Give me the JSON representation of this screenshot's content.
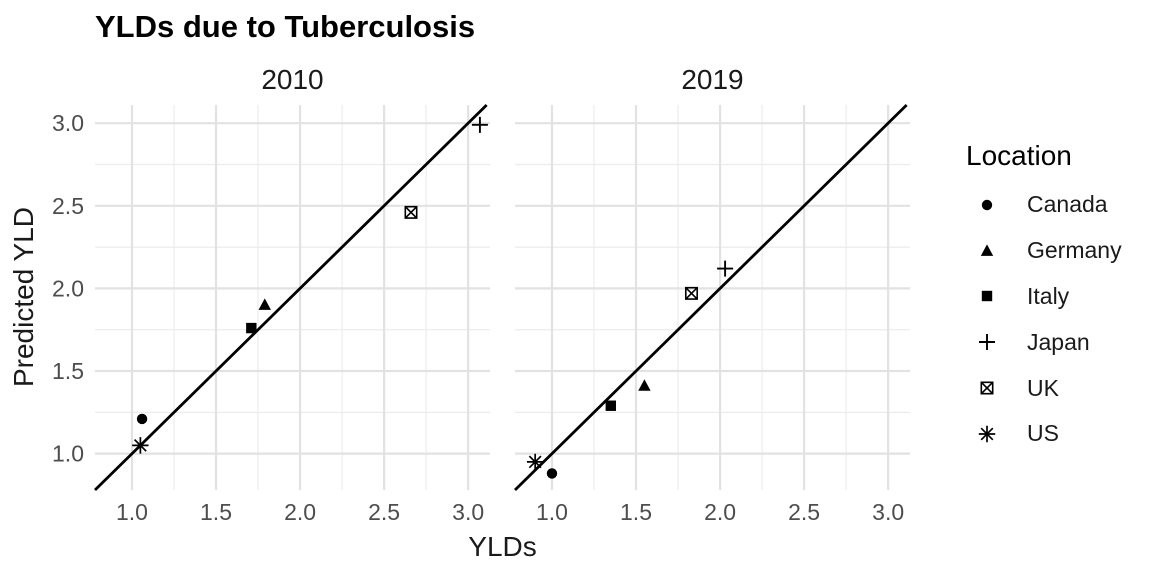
{
  "chart_data": {
    "type": "scatter",
    "title": "YLDs due to Tuberculosis",
    "xlabel": "YLDs",
    "ylabel": "Predicted YLD",
    "xlim": [
      0.78,
      3.13
    ],
    "ylim": [
      0.78,
      3.11
    ],
    "xticks": [
      1.0,
      1.5,
      2.0,
      2.5,
      3.0
    ],
    "yticks": [
      1.0,
      1.5,
      2.0,
      2.5,
      3.0
    ],
    "x_tick_labels": [
      "1.0",
      "1.5",
      "2.0",
      "2.5",
      "3.0"
    ],
    "y_tick_labels": [
      "1.0",
      "1.5",
      "2.0",
      "2.5",
      "3.0"
    ],
    "x_minor_ticks": [
      1.25,
      1.75,
      2.25,
      2.75
    ],
    "y_minor_ticks": [
      1.25,
      1.75,
      2.25,
      2.75
    ],
    "grid": "major-and-minor",
    "legend_position": "right",
    "reference_line": {
      "type": "identity",
      "slope": 1,
      "intercept": 0
    },
    "facets": [
      {
        "label": "2010",
        "points": [
          {
            "location": "Canada",
            "x": 1.06,
            "y": 1.21
          },
          {
            "location": "Germany",
            "x": 1.79,
            "y": 1.9
          },
          {
            "location": "Italy",
            "x": 1.71,
            "y": 1.76
          },
          {
            "location": "Japan",
            "x": 3.07,
            "y": 2.99
          },
          {
            "location": "UK",
            "x": 2.66,
            "y": 2.46
          },
          {
            "location": "US",
            "x": 1.05,
            "y": 1.05
          }
        ]
      },
      {
        "label": "2019",
        "points": [
          {
            "location": "Canada",
            "x": 1.0,
            "y": 0.88
          },
          {
            "location": "Germany",
            "x": 1.55,
            "y": 1.41
          },
          {
            "location": "Italy",
            "x": 1.35,
            "y": 1.29
          },
          {
            "location": "Japan",
            "x": 2.03,
            "y": 2.12
          },
          {
            "location": "UK",
            "x": 1.83,
            "y": 1.97
          },
          {
            "location": "US",
            "x": 0.9,
            "y": 0.95
          }
        ]
      }
    ],
    "legend": {
      "title": "Location",
      "items": [
        {
          "label": "Canada",
          "shape": "filled-circle"
        },
        {
          "label": "Germany",
          "shape": "filled-triangle"
        },
        {
          "label": "Italy",
          "shape": "filled-square"
        },
        {
          "label": "Japan",
          "shape": "plus"
        },
        {
          "label": "UK",
          "shape": "boxed-x"
        },
        {
          "label": "US",
          "shape": "asterisk"
        }
      ]
    },
    "style": {
      "background": "#ffffff",
      "point_color": "#000000",
      "line_color": "#000000",
      "grid_major_color": "#e2e2e2",
      "grid_minor_color": "#ececec",
      "tick_label_color": "#4d4d4d",
      "text_color": "#1a1a1a",
      "title_color": "#000000"
    }
  }
}
